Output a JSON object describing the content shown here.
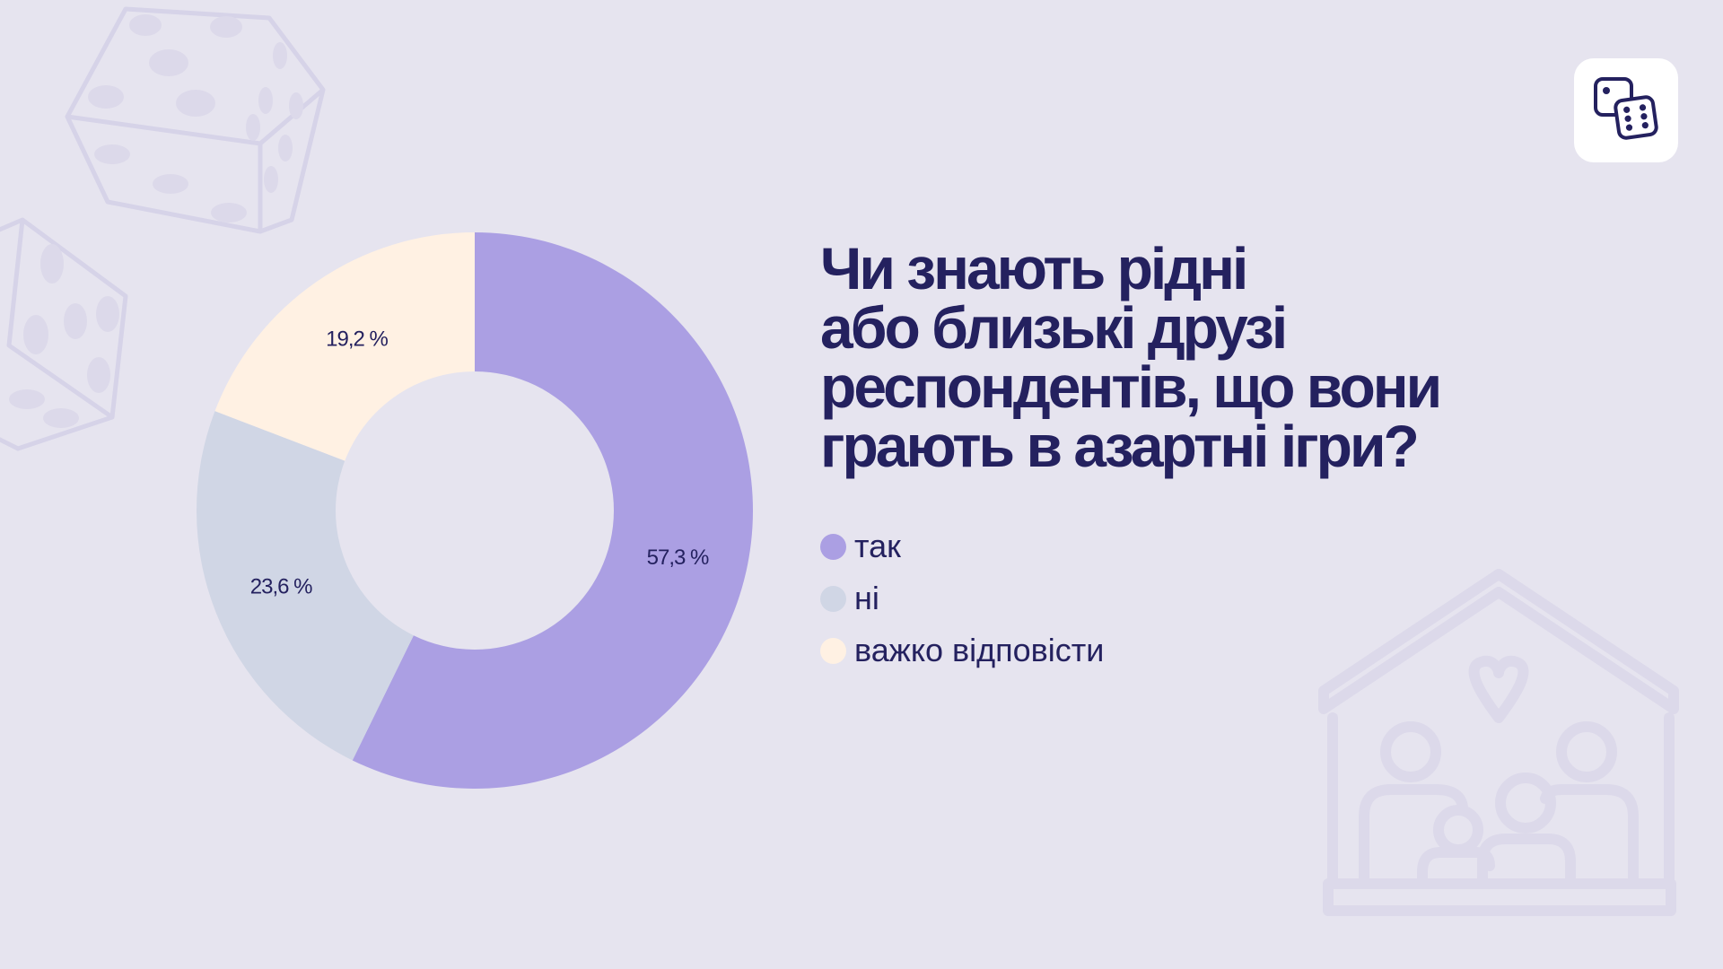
{
  "slide": {
    "background": "#e6e4ef",
    "text_color": "#24215f",
    "decoration_color": "#d6d3e8",
    "title_lines": [
      "Чи знають рідні",
      "або близькі друзі",
      "респондентів, що вони",
      "грають в азартні ігри?"
    ]
  },
  "decorations": {
    "top_left": "dice-icon",
    "bottom_right": "family-house-icon",
    "logo": "dice-logo-icon"
  },
  "chart_data": {
    "type": "pie",
    "donut": true,
    "title": "Чи знають рідні або близькі друзі респондентів, що вони грають в азартні ігри?",
    "slices": [
      {
        "label": "так",
        "value": 57.3,
        "display": "57,3 %",
        "color": "#ab9fe3"
      },
      {
        "label": "ні",
        "value": 23.6,
        "display": "23,6 %",
        "color": "#d0d6e5"
      },
      {
        "label": "важко відповісти",
        "value": 19.2,
        "display": "19,2 %",
        "color": "#fff1e3"
      }
    ],
    "start_angle": "12 o'clock",
    "direction": "clockwise",
    "legend_position": "right"
  }
}
